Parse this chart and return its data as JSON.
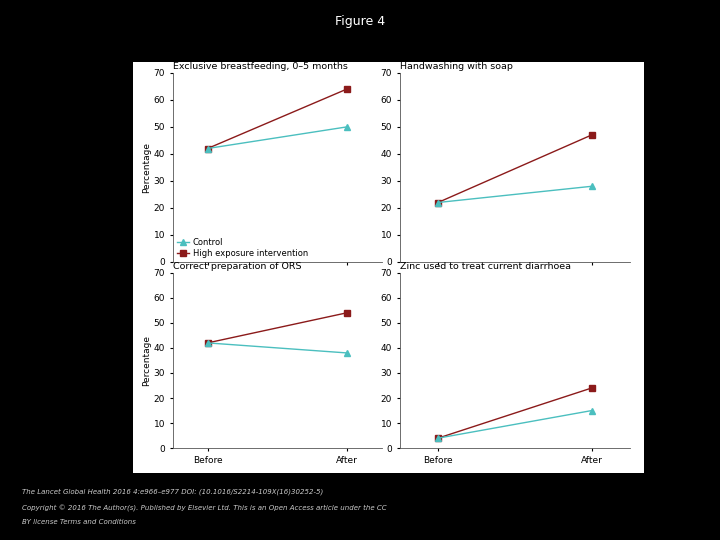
{
  "figure_title": "Figure 4",
  "background_color": "#000000",
  "panel_color": "#ffffff",
  "plot_bg_color": "#ffffff",
  "subplots": [
    {
      "title": "Exclusive breastfeeding, 0–5 months",
      "control": [
        42,
        50
      ],
      "intervention": [
        42,
        64
      ],
      "ylim": [
        0,
        70
      ],
      "yticks": [
        0,
        10,
        20,
        30,
        40,
        50,
        60,
        70
      ],
      "show_legend": true,
      "show_ylabel": true,
      "show_xlabel": false
    },
    {
      "title": "Handwashing with soap",
      "control": [
        22,
        28
      ],
      "intervention": [
        22,
        47
      ],
      "ylim": [
        0,
        70
      ],
      "yticks": [
        0,
        10,
        20,
        30,
        40,
        50,
        60,
        70
      ],
      "show_legend": false,
      "show_ylabel": false,
      "show_xlabel": false
    },
    {
      "title": "Correct preparation of ORS",
      "control": [
        42,
        38
      ],
      "intervention": [
        42,
        54
      ],
      "ylim": [
        0,
        70
      ],
      "yticks": [
        0,
        10,
        20,
        30,
        40,
        50,
        60,
        70
      ],
      "show_legend": false,
      "show_ylabel": true,
      "show_xlabel": true
    },
    {
      "title": "Zinc used to treat current diarrhoea",
      "control": [
        4,
        15
      ],
      "intervention": [
        4,
        24
      ],
      "ylim": [
        0,
        70
      ],
      "yticks": [
        0,
        10,
        20,
        30,
        40,
        50,
        60,
        70
      ],
      "show_legend": false,
      "show_ylabel": false,
      "show_xlabel": true
    }
  ],
  "control_color": "#4bbfbf",
  "intervention_color": "#8b1a1a",
  "control_label": "Control",
  "intervention_label": "High exposure intervention",
  "x_labels": [
    "Before",
    "After"
  ],
  "ylabel": "Percentage",
  "footnote_line1": "The Lancet Global Health 2016 4:e966–e977 DOI: (10.1016/S2214-109X(16)30252-5)",
  "footnote_line2": "Copyright © 2016 The Author(s). Published by Elsevier Ltd. This is an Open Access article under the CC",
  "footnote_line3": "BY license Terms and Conditions"
}
